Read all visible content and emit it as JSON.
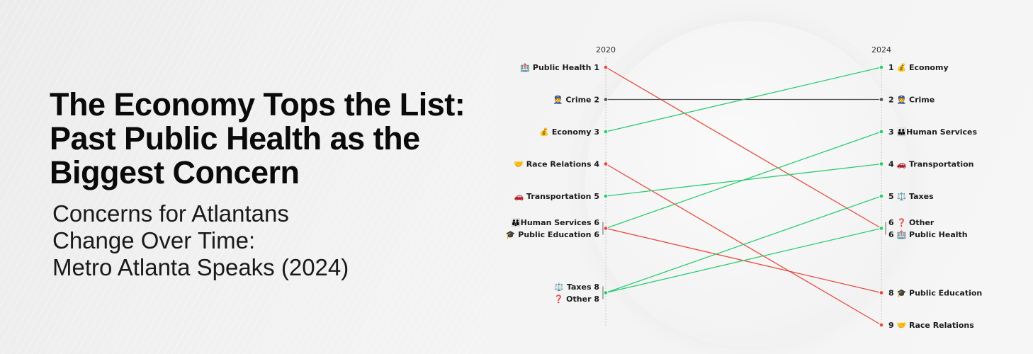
{
  "title_lines": [
    "The Economy Tops the List:",
    "Past Public Health as the",
    "Biggest Concern"
  ],
  "subtitle_lines": [
    "Concerns for Atlantans",
    "Change Over Time:",
    "Metro Atlanta Speaks (2024)"
  ],
  "colors": {
    "up": "#2ecc71",
    "down": "#e74c3c",
    "same": "#555555"
  },
  "chart_data": {
    "type": "slope",
    "x": [
      "2020",
      "2024"
    ],
    "y_axis": "rank (1 at top)",
    "ylim": [
      1,
      9
    ],
    "series": [
      {
        "name": "Public Health",
        "icon": "🏥",
        "values": [
          1,
          6
        ],
        "change": "down"
      },
      {
        "name": "Crime",
        "icon": "👮",
        "values": [
          2,
          2
        ],
        "change": "same"
      },
      {
        "name": "Economy",
        "icon": "💰",
        "values": [
          3,
          1
        ],
        "change": "up"
      },
      {
        "name": "Race Relations",
        "icon": "🤝",
        "values": [
          4,
          9
        ],
        "change": "down"
      },
      {
        "name": "Transportation",
        "icon": "🚗",
        "values": [
          5,
          4
        ],
        "change": "up"
      },
      {
        "name": "Human Services",
        "icon": "👪",
        "values": [
          6,
          3
        ],
        "change": "up"
      },
      {
        "name": "Public Education",
        "icon": "🎓",
        "values": [
          6,
          8
        ],
        "change": "down"
      },
      {
        "name": "Taxes",
        "icon": "⚖️",
        "values": [
          8,
          5
        ],
        "change": "up"
      },
      {
        "name": "Other",
        "icon": "❓",
        "values": [
          8,
          6
        ],
        "change": "up"
      }
    ],
    "labels_2020": [
      {
        "text": "🏥 Public Health 1",
        "rank": 1
      },
      {
        "text": "👮 Crime 2",
        "rank": 2
      },
      {
        "text": "💰 Economy 3",
        "rank": 3
      },
      {
        "text": "🤝 Race Relations 4",
        "rank": 4
      },
      {
        "text": "🚗 Transportation 5",
        "rank": 5
      },
      {
        "text": "👪Human Services 6",
        "rank": 6,
        "offset": -1
      },
      {
        "text": "🎓 Public Education 6",
        "rank": 6,
        "offset": 1
      },
      {
        "text": "⚖️ Taxes 8",
        "rank": 8,
        "offset": -1
      },
      {
        "text": "❓ Other 8",
        "rank": 8,
        "offset": 1
      }
    ],
    "labels_2024": [
      {
        "text": "1  💰 Economy",
        "rank": 1
      },
      {
        "text": "2  👮 Crime",
        "rank": 2
      },
      {
        "text": "3  👪Human Services",
        "rank": 3
      },
      {
        "text": "4  🚗 Transportation",
        "rank": 4
      },
      {
        "text": "5  ⚖️ Taxes",
        "rank": 5
      },
      {
        "text": "6  ❓ Other",
        "rank": 6,
        "offset": -1
      },
      {
        "text": "6  🏥 Public Health",
        "rank": 6,
        "offset": 1
      },
      {
        "text": "8  🎓 Public Education",
        "rank": 8
      },
      {
        "text": "9  🤝 Race Relations",
        "rank": 9
      }
    ]
  }
}
